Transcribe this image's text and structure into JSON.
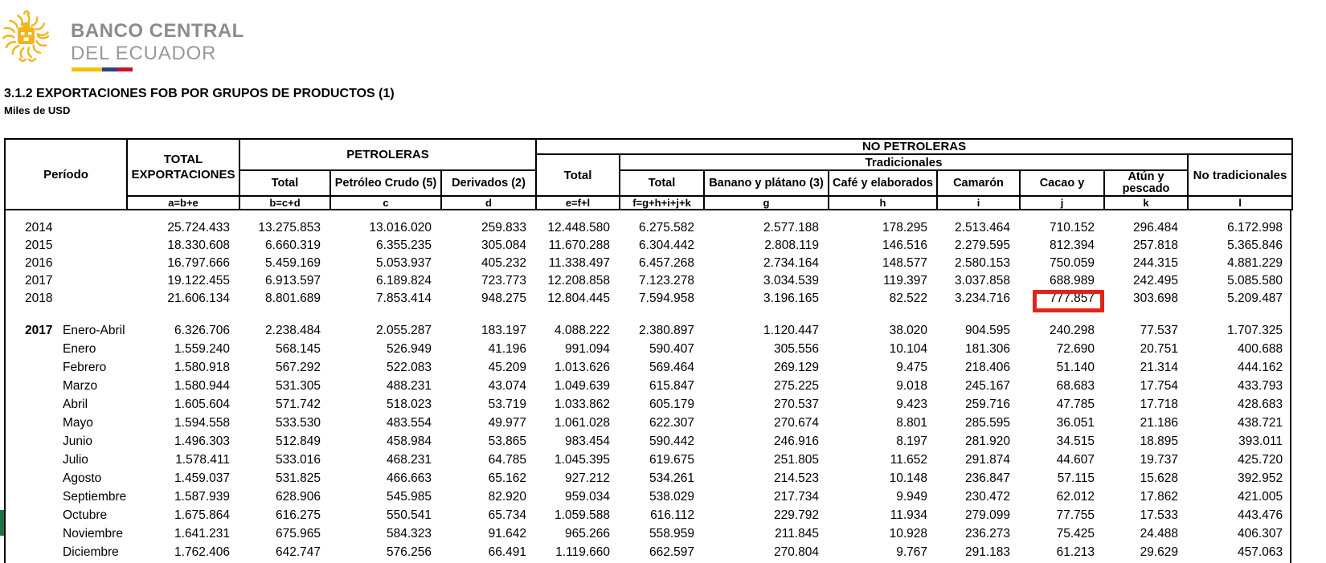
{
  "logo": {
    "line1": "BANCO CENTRAL",
    "line2": "DEL ECUADOR"
  },
  "title": "3.1.2 EXPORTACIONES FOB POR GRUPOS DE PRODUCTOS (1)",
  "subtitle": "Miles de USD",
  "colors": {
    "highlight_red": "#e2231a",
    "excel_green": "#217346",
    "logo_gold": "#f2b41e",
    "logo_gray": "#8a8c8f",
    "flag_yellow": "#f6c100",
    "flag_blue": "#2f3f8f",
    "flag_red": "#ce1126"
  },
  "table": {
    "header": {
      "periodo": "Período",
      "total_exportaciones": "TOTAL EXPORTACIONES",
      "petroleras": "PETROLERAS",
      "no_petroleras": "NO PETROLERAS",
      "tradicionales": "Tradicionales",
      "no_tradicionales": "No tradicionales",
      "total_no_petroleras": "Total",
      "petroleras_columns": [
        "Total",
        "Petróleo Crudo (5)",
        "Derivados (2)"
      ],
      "tradicionales_columns": [
        "Total",
        "Banano y plátano (3)",
        "Café y elaborados",
        "Camarón",
        "Cacao y",
        "Atún y pescado"
      ],
      "formulas": [
        "a=b+e",
        "b=c+d",
        "c",
        "d",
        "e=f+l",
        "f=g+h+i+j+k",
        "g",
        "h",
        "i",
        "j",
        "k",
        "l"
      ]
    },
    "yearly_rows": [
      {
        "period": "2014",
        "values": [
          "25.724.433",
          "13.275.853",
          "13.016.020",
          "259.833",
          "12.448.580",
          "6.275.582",
          "2.577.188",
          "178.295",
          "2.513.464",
          "710.152",
          "296.484",
          "6.172.998"
        ]
      },
      {
        "period": "2015",
        "values": [
          "18.330.608",
          "6.660.319",
          "6.355.235",
          "305.084",
          "11.670.288",
          "6.304.442",
          "2.808.119",
          "146.516",
          "2.279.595",
          "812.394",
          "257.818",
          "5.365.846"
        ]
      },
      {
        "period": "2016",
        "values": [
          "16.797.666",
          "5.459.169",
          "5.053.937",
          "405.232",
          "11.338.497",
          "6.457.268",
          "2.734.164",
          "148.577",
          "2.580.153",
          "750.059",
          "244.315",
          "4.881.229"
        ]
      },
      {
        "period": "2017",
        "values": [
          "19.122.455",
          "6.913.597",
          "6.189.824",
          "723.773",
          "12.208.858",
          "7.123.278",
          "3.034.539",
          "119.397",
          "3.037.858",
          "688.989",
          "242.495",
          "5.085.580"
        ]
      },
      {
        "period": "2018",
        "values": [
          "21.606.134",
          "8.801.689",
          "7.853.414",
          "948.275",
          "12.804.445",
          "7.594.958",
          "3.196.165",
          "82.522",
          "3.234.716",
          "777.857",
          "303.698",
          "5.209.487"
        ]
      }
    ],
    "monthly_rows": [
      {
        "year": "2017",
        "period": "Enero-Abril",
        "values": [
          "6.326.706",
          "2.238.484",
          "2.055.287",
          "183.197",
          "4.088.222",
          "2.380.897",
          "1.120.447",
          "38.020",
          "904.595",
          "240.298",
          "77.537",
          "1.707.325"
        ]
      },
      {
        "year": "",
        "period": "Enero",
        "values": [
          "1.559.240",
          "568.145",
          "526.949",
          "41.196",
          "991.094",
          "590.407",
          "305.556",
          "10.104",
          "181.306",
          "72.690",
          "20.751",
          "400.688"
        ]
      },
      {
        "year": "",
        "period": "Febrero",
        "values": [
          "1.580.918",
          "567.292",
          "522.083",
          "45.209",
          "1.013.626",
          "569.464",
          "269.129",
          "9.475",
          "218.406",
          "51.140",
          "21.314",
          "444.162"
        ]
      },
      {
        "year": "",
        "period": "Marzo",
        "values": [
          "1.580.944",
          "531.305",
          "488.231",
          "43.074",
          "1.049.639",
          "615.847",
          "275.225",
          "9.018",
          "245.167",
          "68.683",
          "17.754",
          "433.793"
        ]
      },
      {
        "year": "",
        "period": "Abril",
        "values": [
          "1.605.604",
          "571.742",
          "518.023",
          "53.719",
          "1.033.862",
          "605.179",
          "270.537",
          "9.423",
          "259.716",
          "47.785",
          "17.718",
          "428.683"
        ]
      },
      {
        "year": "",
        "period": "Mayo",
        "values": [
          "1.594.558",
          "533.530",
          "483.554",
          "49.977",
          "1.061.028",
          "622.307",
          "270.674",
          "8.801",
          "285.595",
          "36.051",
          "21.186",
          "438.721"
        ]
      },
      {
        "year": "",
        "period": "Junio",
        "values": [
          "1.496.303",
          "512.849",
          "458.984",
          "53.865",
          "983.454",
          "590.442",
          "246.916",
          "8.197",
          "281.920",
          "34.515",
          "18.895",
          "393.011"
        ]
      },
      {
        "year": "",
        "period": "Julio",
        "values": [
          "1.578.411",
          "533.016",
          "468.231",
          "64.785",
          "1.045.395",
          "619.675",
          "251.805",
          "11.652",
          "291.874",
          "44.607",
          "19.737",
          "425.720"
        ]
      },
      {
        "year": "",
        "period": "Agosto",
        "values": [
          "1.459.037",
          "531.825",
          "466.663",
          "65.162",
          "927.212",
          "534.261",
          "214.523",
          "10.148",
          "236.847",
          "57.115",
          "15.628",
          "392.952"
        ]
      },
      {
        "year": "",
        "period": "Septiembre",
        "values": [
          "1.587.939",
          "628.906",
          "545.985",
          "82.920",
          "959.034",
          "538.029",
          "217.734",
          "9.949",
          "230.472",
          "62.012",
          "17.862",
          "421.005"
        ]
      },
      {
        "year": "",
        "period": "Octubre",
        "values": [
          "1.675.864",
          "616.275",
          "550.541",
          "65.734",
          "1.059.588",
          "616.112",
          "229.792",
          "11.934",
          "279.099",
          "77.755",
          "17.533",
          "443.476"
        ]
      },
      {
        "year": "",
        "period": "Noviembre",
        "values": [
          "1.641.231",
          "675.965",
          "584.323",
          "91.642",
          "965.266",
          "558.959",
          "211.845",
          "10.928",
          "236.273",
          "75.425",
          "24.488",
          "406.307"
        ]
      },
      {
        "year": "",
        "period": "Diciembre",
        "values": [
          "1.762.406",
          "642.747",
          "576.256",
          "66.491",
          "1.119.660",
          "662.597",
          "270.804",
          "9.767",
          "291.183",
          "61.213",
          "29.629",
          "457.063"
        ]
      }
    ],
    "highlight": {
      "period": "2018",
      "formula_code": "j",
      "column": "Cacao y",
      "value": "777.857"
    }
  }
}
